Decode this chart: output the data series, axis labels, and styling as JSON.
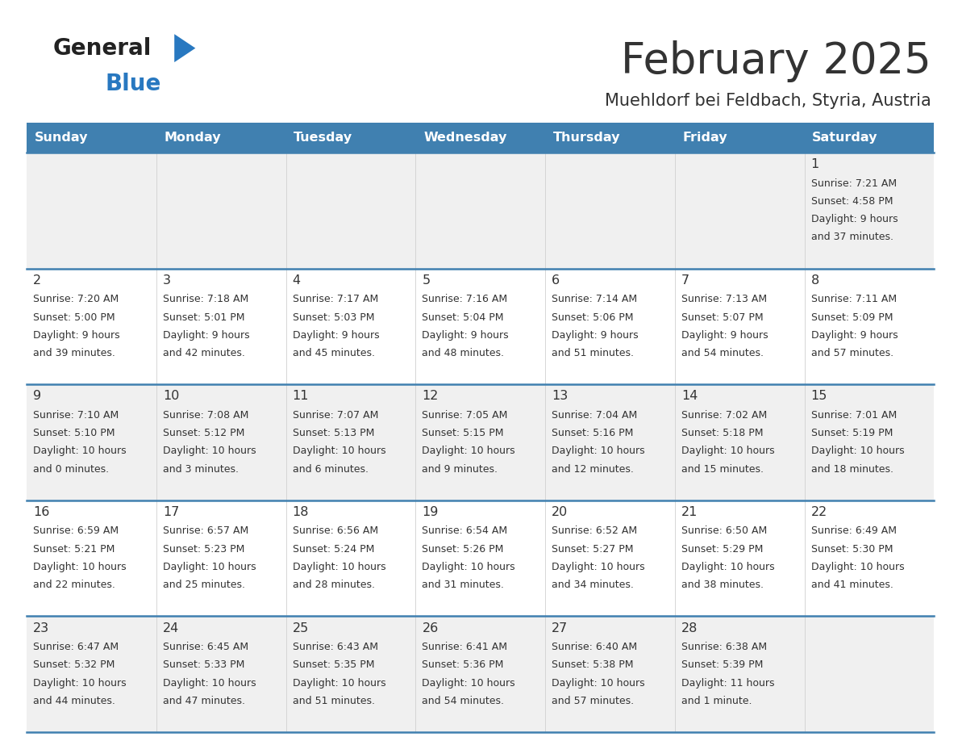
{
  "title": "February 2025",
  "subtitle": "Muehldorf bei Feldbach, Styria, Austria",
  "days_of_week": [
    "Sunday",
    "Monday",
    "Tuesday",
    "Wednesday",
    "Thursday",
    "Friday",
    "Saturday"
  ],
  "header_bg_color": "#4080b0",
  "header_text_color": "#ffffff",
  "row_bg_even": "#f0f0f0",
  "row_bg_odd": "#ffffff",
  "divider_color": "#4080b0",
  "text_color": "#333333",
  "day_num_color": "#333333",
  "logo_general_color": "#222222",
  "logo_blue_color": "#2878c0",
  "calendar_data": [
    {
      "day": 1,
      "col": 6,
      "row": 0,
      "sunrise": "7:21 AM",
      "sunset": "4:58 PM",
      "daylight": "9 hours and 37 minutes."
    },
    {
      "day": 2,
      "col": 0,
      "row": 1,
      "sunrise": "7:20 AM",
      "sunset": "5:00 PM",
      "daylight": "9 hours and 39 minutes."
    },
    {
      "day": 3,
      "col": 1,
      "row": 1,
      "sunrise": "7:18 AM",
      "sunset": "5:01 PM",
      "daylight": "9 hours and 42 minutes."
    },
    {
      "day": 4,
      "col": 2,
      "row": 1,
      "sunrise": "7:17 AM",
      "sunset": "5:03 PM",
      "daylight": "9 hours and 45 minutes."
    },
    {
      "day": 5,
      "col": 3,
      "row": 1,
      "sunrise": "7:16 AM",
      "sunset": "5:04 PM",
      "daylight": "9 hours and 48 minutes."
    },
    {
      "day": 6,
      "col": 4,
      "row": 1,
      "sunrise": "7:14 AM",
      "sunset": "5:06 PM",
      "daylight": "9 hours and 51 minutes."
    },
    {
      "day": 7,
      "col": 5,
      "row": 1,
      "sunrise": "7:13 AM",
      "sunset": "5:07 PM",
      "daylight": "9 hours and 54 minutes."
    },
    {
      "day": 8,
      "col": 6,
      "row": 1,
      "sunrise": "7:11 AM",
      "sunset": "5:09 PM",
      "daylight": "9 hours and 57 minutes."
    },
    {
      "day": 9,
      "col": 0,
      "row": 2,
      "sunrise": "7:10 AM",
      "sunset": "5:10 PM",
      "daylight": "10 hours and 0 minutes."
    },
    {
      "day": 10,
      "col": 1,
      "row": 2,
      "sunrise": "7:08 AM",
      "sunset": "5:12 PM",
      "daylight": "10 hours and 3 minutes."
    },
    {
      "day": 11,
      "col": 2,
      "row": 2,
      "sunrise": "7:07 AM",
      "sunset": "5:13 PM",
      "daylight": "10 hours and 6 minutes."
    },
    {
      "day": 12,
      "col": 3,
      "row": 2,
      "sunrise": "7:05 AM",
      "sunset": "5:15 PM",
      "daylight": "10 hours and 9 minutes."
    },
    {
      "day": 13,
      "col": 4,
      "row": 2,
      "sunrise": "7:04 AM",
      "sunset": "5:16 PM",
      "daylight": "10 hours and 12 minutes."
    },
    {
      "day": 14,
      "col": 5,
      "row": 2,
      "sunrise": "7:02 AM",
      "sunset": "5:18 PM",
      "daylight": "10 hours and 15 minutes."
    },
    {
      "day": 15,
      "col": 6,
      "row": 2,
      "sunrise": "7:01 AM",
      "sunset": "5:19 PM",
      "daylight": "10 hours and 18 minutes."
    },
    {
      "day": 16,
      "col": 0,
      "row": 3,
      "sunrise": "6:59 AM",
      "sunset": "5:21 PM",
      "daylight": "10 hours and 22 minutes."
    },
    {
      "day": 17,
      "col": 1,
      "row": 3,
      "sunrise": "6:57 AM",
      "sunset": "5:23 PM",
      "daylight": "10 hours and 25 minutes."
    },
    {
      "day": 18,
      "col": 2,
      "row": 3,
      "sunrise": "6:56 AM",
      "sunset": "5:24 PM",
      "daylight": "10 hours and 28 minutes."
    },
    {
      "day": 19,
      "col": 3,
      "row": 3,
      "sunrise": "6:54 AM",
      "sunset": "5:26 PM",
      "daylight": "10 hours and 31 minutes."
    },
    {
      "day": 20,
      "col": 4,
      "row": 3,
      "sunrise": "6:52 AM",
      "sunset": "5:27 PM",
      "daylight": "10 hours and 34 minutes."
    },
    {
      "day": 21,
      "col": 5,
      "row": 3,
      "sunrise": "6:50 AM",
      "sunset": "5:29 PM",
      "daylight": "10 hours and 38 minutes."
    },
    {
      "day": 22,
      "col": 6,
      "row": 3,
      "sunrise": "6:49 AM",
      "sunset": "5:30 PM",
      "daylight": "10 hours and 41 minutes."
    },
    {
      "day": 23,
      "col": 0,
      "row": 4,
      "sunrise": "6:47 AM",
      "sunset": "5:32 PM",
      "daylight": "10 hours and 44 minutes."
    },
    {
      "day": 24,
      "col": 1,
      "row": 4,
      "sunrise": "6:45 AM",
      "sunset": "5:33 PM",
      "daylight": "10 hours and 47 minutes."
    },
    {
      "day": 25,
      "col": 2,
      "row": 4,
      "sunrise": "6:43 AM",
      "sunset": "5:35 PM",
      "daylight": "10 hours and 51 minutes."
    },
    {
      "day": 26,
      "col": 3,
      "row": 4,
      "sunrise": "6:41 AM",
      "sunset": "5:36 PM",
      "daylight": "10 hours and 54 minutes."
    },
    {
      "day": 27,
      "col": 4,
      "row": 4,
      "sunrise": "6:40 AM",
      "sunset": "5:38 PM",
      "daylight": "10 hours and 57 minutes."
    },
    {
      "day": 28,
      "col": 5,
      "row": 4,
      "sunrise": "6:38 AM",
      "sunset": "5:39 PM",
      "daylight": "11 hours and 1 minute."
    }
  ]
}
